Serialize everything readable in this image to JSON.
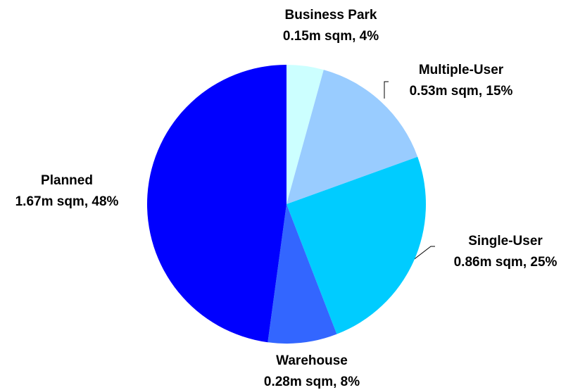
{
  "chart_data": {
    "type": "pie",
    "categories": [
      "Business Park",
      "Multiple-User",
      "Single-User",
      "Warehouse",
      "Planned"
    ],
    "values": [
      0.15,
      0.53,
      0.86,
      0.28,
      1.67
    ],
    "value_labels": [
      "0.15m sqm, 4%",
      "0.53m sqm, 15%",
      "0.86m sqm, 25%",
      "0.28m sqm, 8%",
      "1.67m sqm, 48%"
    ],
    "colors": [
      "#ccffff",
      "#99ccff",
      "#00ccff",
      "#3366ff",
      "#0000ff"
    ]
  }
}
